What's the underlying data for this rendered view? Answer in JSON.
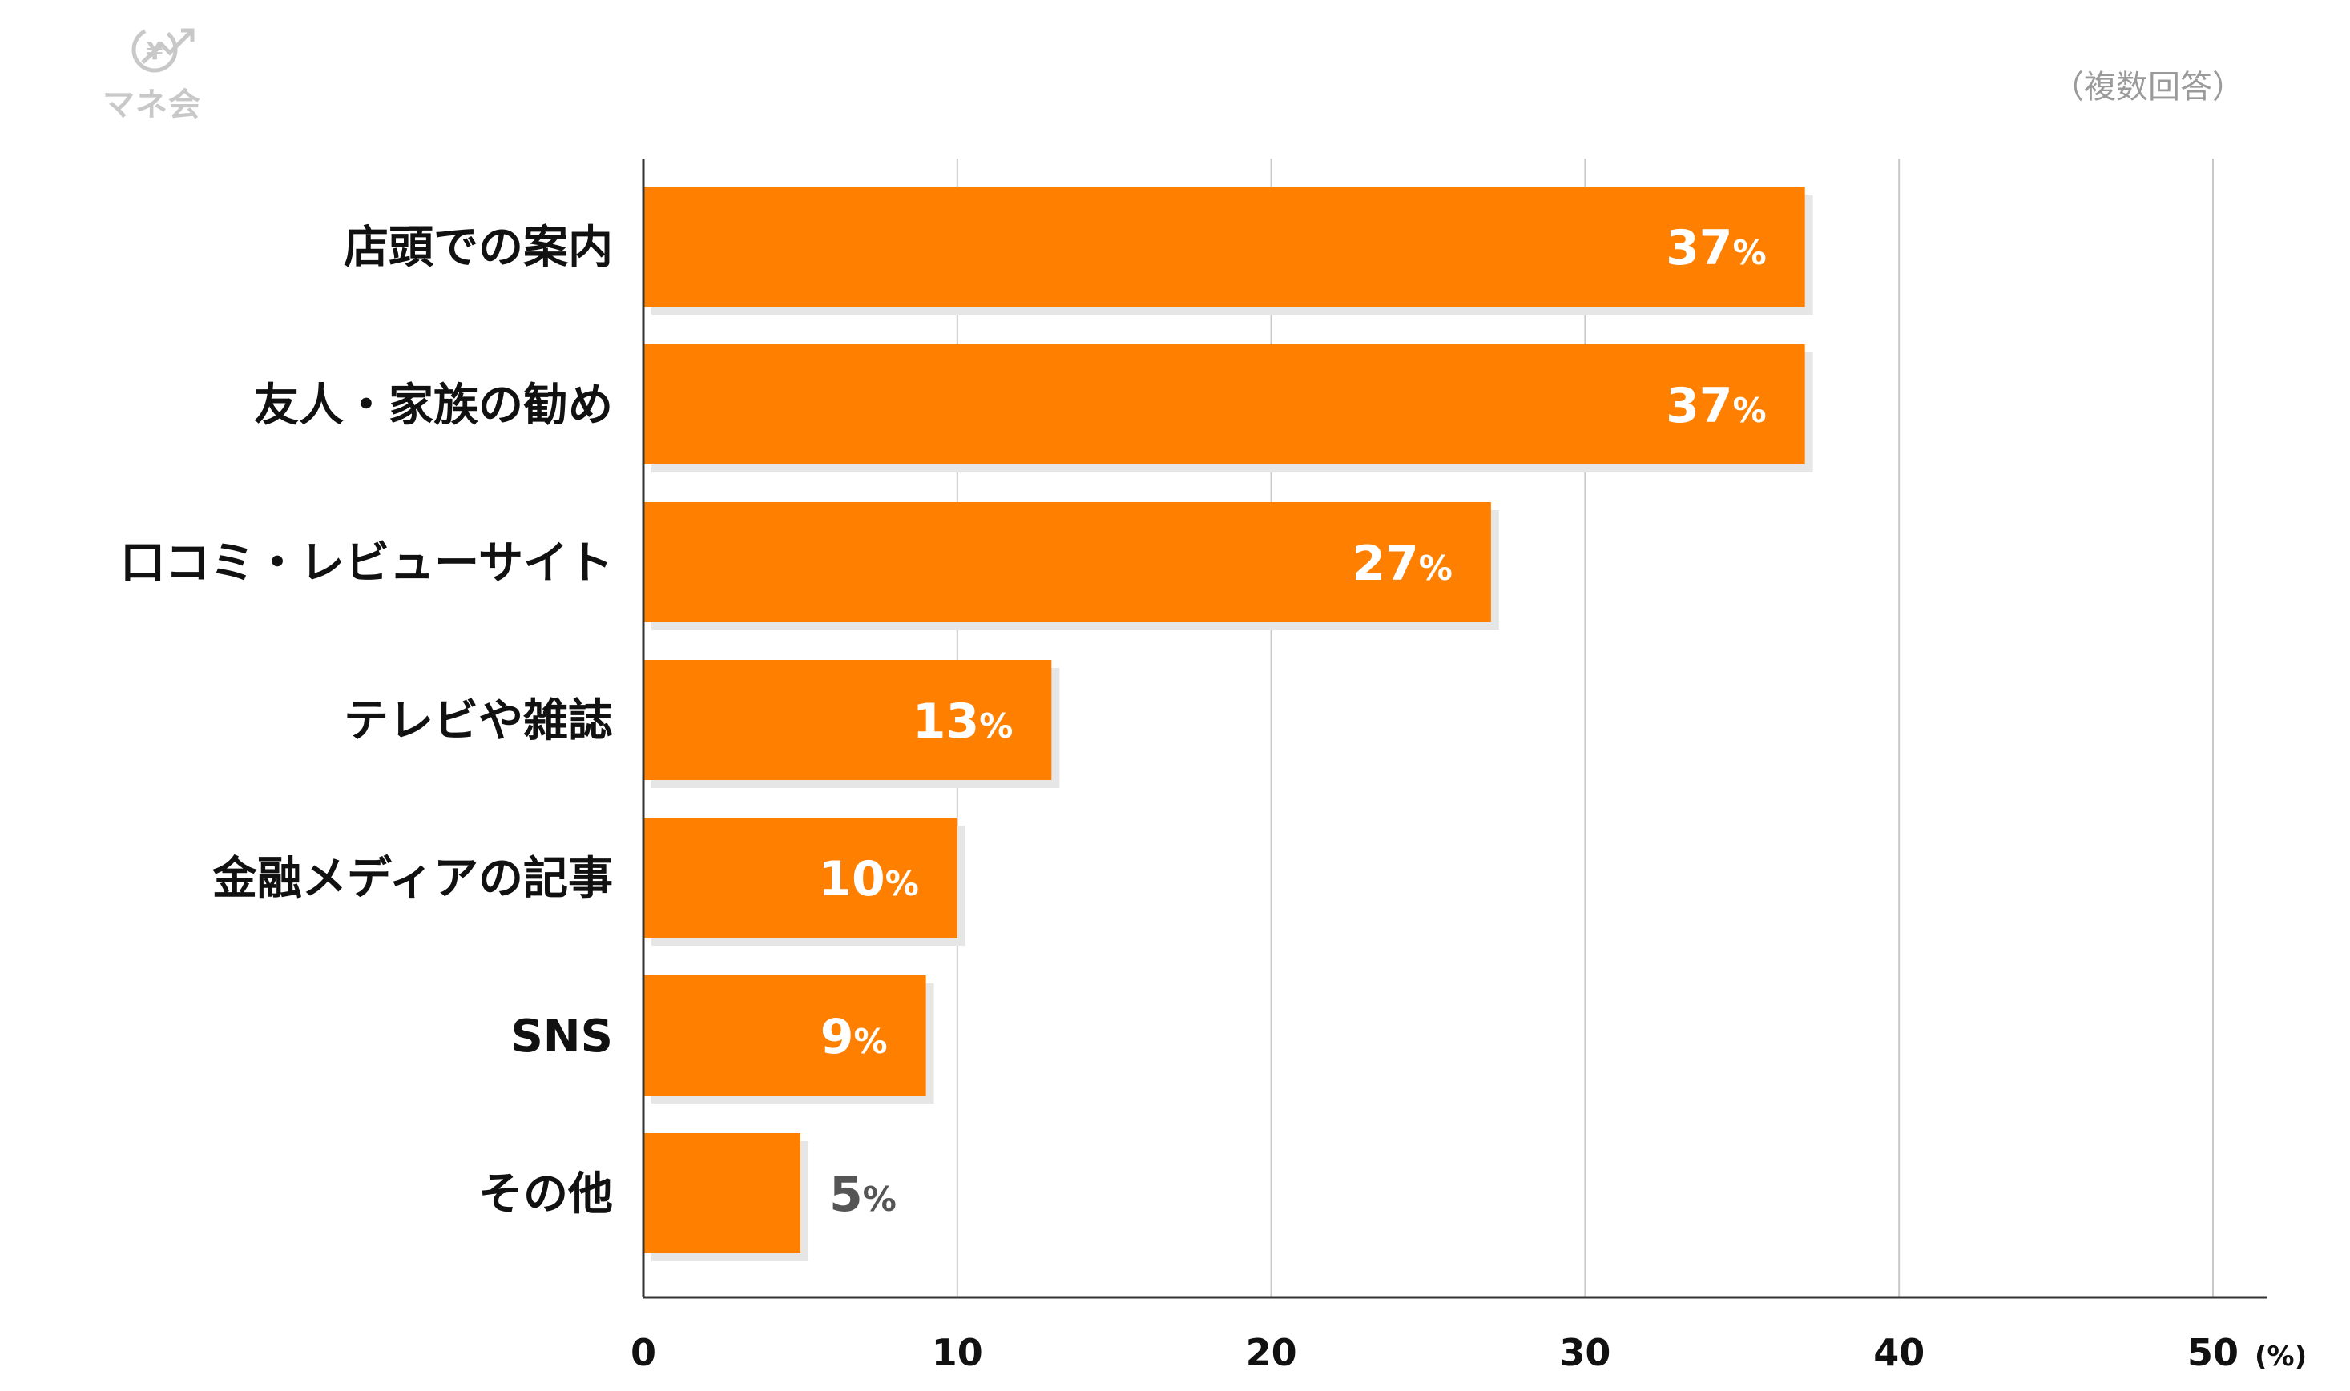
{
  "logo": {
    "text": "マネ会",
    "symbol": "¥"
  },
  "note": "（複数回答）",
  "chart_data": {
    "type": "bar",
    "orientation": "horizontal",
    "categories": [
      "店頭での案内",
      "友人・家族の勧め",
      "口コミ・レビューサイト",
      "テレビや雑誌",
      "金融メディアの記事",
      "SNS",
      "その他"
    ],
    "values": [
      37,
      37,
      27,
      13,
      10,
      9,
      5
    ],
    "value_labels": [
      "37",
      "37",
      "27",
      "13",
      "10",
      "9",
      "5"
    ],
    "value_unit": "%",
    "xlim": [
      0,
      50
    ],
    "xticks": [
      "0",
      "10",
      "20",
      "30",
      "40",
      "50"
    ],
    "xunit": "(%)",
    "grid": true,
    "colors": {
      "bar": "#ff7f00",
      "bar_shadow": "#e6e6e6",
      "grid": "#c8c8c8",
      "axis": "#333333",
      "inside_label": "#ffffff",
      "outside_label": "#555555"
    }
  }
}
